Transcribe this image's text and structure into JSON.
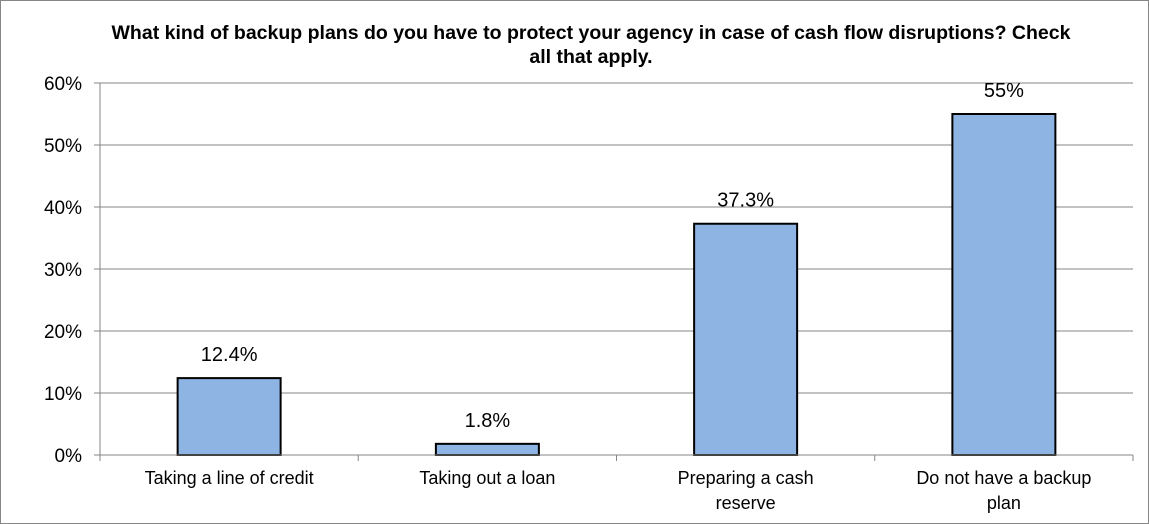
{
  "chart_data": {
    "type": "bar",
    "title": "What kind of backup plans do you have to protect your agency in case of cash flow disruptions? Check all that apply.",
    "categories": [
      [
        "Taking a line of credit"
      ],
      [
        "Taking out a loan"
      ],
      [
        "Preparing a cash",
        "reserve"
      ],
      [
        "Do not have a backup",
        "plan"
      ]
    ],
    "values": [
      12.4,
      1.8,
      37.3,
      55
    ],
    "data_labels": [
      "12.4%",
      "1.8%",
      "37.3%",
      "55%"
    ],
    "y_ticks": [
      "0%",
      "10%",
      "20%",
      "30%",
      "40%",
      "50%",
      "60%"
    ],
    "ylim": [
      0,
      60
    ],
    "grid": true,
    "legend": "none",
    "bar_color": "#8eb4e3",
    "bar_edge_color": "#000000"
  }
}
